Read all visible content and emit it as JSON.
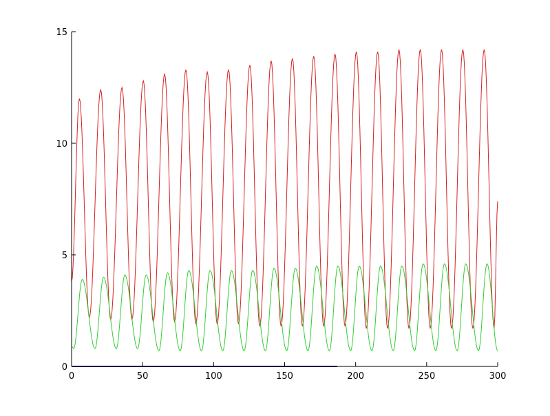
{
  "chart_data": {
    "type": "line",
    "title": "",
    "xlabel": "",
    "ylabel": "",
    "xlim": [
      0,
      300
    ],
    "ylim": [
      0,
      15
    ],
    "x_ticks": [
      0,
      50,
      100,
      150,
      200,
      250,
      300
    ],
    "y_ticks": [
      0,
      5,
      10,
      15
    ],
    "x_tick_labels": [
      "0",
      "50",
      "100",
      "150",
      "200",
      "250",
      "300"
    ],
    "y_tick_labels": [
      "0",
      "5",
      "10",
      "15"
    ],
    "grid": false,
    "legend": "none",
    "series": [
      {
        "color": "#d62020",
        "start": {
          "x": 0,
          "y": 3.8
        },
        "end": {
          "x": 300,
          "y": 7.4
        },
        "peaks": [
          {
            "x": 5.5,
            "y": 12.0
          },
          {
            "x": 20.5,
            "y": 12.4
          },
          {
            "x": 35.5,
            "y": 12.5
          },
          {
            "x": 50.5,
            "y": 12.8
          },
          {
            "x": 65.5,
            "y": 13.1
          },
          {
            "x": 80.5,
            "y": 13.3
          },
          {
            "x": 95.5,
            "y": 13.2
          },
          {
            "x": 110.5,
            "y": 13.3
          },
          {
            "x": 125.5,
            "y": 13.5
          },
          {
            "x": 140.5,
            "y": 13.7
          },
          {
            "x": 155.5,
            "y": 13.8
          },
          {
            "x": 170.5,
            "y": 13.9
          },
          {
            "x": 185.5,
            "y": 14.0
          },
          {
            "x": 200.5,
            "y": 14.1
          },
          {
            "x": 215.5,
            "y": 14.1
          },
          {
            "x": 230.5,
            "y": 14.2
          },
          {
            "x": 245.5,
            "y": 14.2
          },
          {
            "x": 260.5,
            "y": 14.2
          },
          {
            "x": 275.5,
            "y": 14.2
          },
          {
            "x": 290.5,
            "y": 14.2
          }
        ],
        "troughs": [
          {
            "x": 12.5,
            "y": 2.2
          },
          {
            "x": 27.5,
            "y": 2.1
          },
          {
            "x": 42.5,
            "y": 2.1
          },
          {
            "x": 57.5,
            "y": 2.0
          },
          {
            "x": 72.5,
            "y": 2.0
          },
          {
            "x": 87.5,
            "y": 1.9
          },
          {
            "x": 102.5,
            "y": 1.9
          },
          {
            "x": 117.5,
            "y": 1.9
          },
          {
            "x": 132.5,
            "y": 1.8
          },
          {
            "x": 147.5,
            "y": 1.8
          },
          {
            "x": 162.5,
            "y": 1.8
          },
          {
            "x": 177.5,
            "y": 1.8
          },
          {
            "x": 192.5,
            "y": 1.8
          },
          {
            "x": 207.5,
            "y": 1.7
          },
          {
            "x": 222.5,
            "y": 1.7
          },
          {
            "x": 237.5,
            "y": 1.7
          },
          {
            "x": 252.5,
            "y": 1.7
          },
          {
            "x": 267.5,
            "y": 1.7
          },
          {
            "x": 282.5,
            "y": 1.7
          },
          {
            "x": 297.5,
            "y": 1.7
          }
        ]
      },
      {
        "color": "#33cc33",
        "start": {
          "x": 0,
          "y": 0.9
        },
        "end": {
          "x": 300,
          "y": 0.7
        },
        "peaks": [
          {
            "x": 7.5,
            "y": 3.9
          },
          {
            "x": 22.5,
            "y": 4.0
          },
          {
            "x": 37.5,
            "y": 4.1
          },
          {
            "x": 52.5,
            "y": 4.1
          },
          {
            "x": 67.5,
            "y": 4.2
          },
          {
            "x": 82.5,
            "y": 4.3
          },
          {
            "x": 97.5,
            "y": 4.3
          },
          {
            "x": 112.5,
            "y": 4.3
          },
          {
            "x": 127.5,
            "y": 4.3
          },
          {
            "x": 142.5,
            "y": 4.4
          },
          {
            "x": 157.5,
            "y": 4.4
          },
          {
            "x": 172.5,
            "y": 4.5
          },
          {
            "x": 187.5,
            "y": 4.5
          },
          {
            "x": 202.5,
            "y": 4.5
          },
          {
            "x": 217.5,
            "y": 4.5
          },
          {
            "x": 232.5,
            "y": 4.5
          },
          {
            "x": 247.5,
            "y": 4.6
          },
          {
            "x": 262.5,
            "y": 4.6
          },
          {
            "x": 277.5,
            "y": 4.6
          },
          {
            "x": 292.5,
            "y": 4.6
          }
        ],
        "troughs": [
          {
            "x": 1.5,
            "y": 0.8
          },
          {
            "x": 16.5,
            "y": 0.8
          },
          {
            "x": 31.5,
            "y": 0.8
          },
          {
            "x": 46.5,
            "y": 0.8
          },
          {
            "x": 61.5,
            "y": 0.7
          },
          {
            "x": 76.5,
            "y": 0.7
          },
          {
            "x": 91.5,
            "y": 0.7
          },
          {
            "x": 106.5,
            "y": 0.7
          },
          {
            "x": 121.5,
            "y": 0.7
          },
          {
            "x": 136.5,
            "y": 0.7
          },
          {
            "x": 151.5,
            "y": 0.7
          },
          {
            "x": 166.5,
            "y": 0.7
          },
          {
            "x": 181.5,
            "y": 0.7
          },
          {
            "x": 196.5,
            "y": 0.7
          },
          {
            "x": 211.5,
            "y": 0.7
          },
          {
            "x": 226.5,
            "y": 0.7
          },
          {
            "x": 241.5,
            "y": 0.7
          },
          {
            "x": 256.5,
            "y": 0.7
          },
          {
            "x": 271.5,
            "y": 0.7
          },
          {
            "x": 286.5,
            "y": 0.7
          }
        ]
      },
      {
        "color": "#00008b",
        "x": [
          0,
          180,
          183,
          187
        ],
        "y": [
          0,
          0,
          0,
          0
        ]
      }
    ]
  }
}
